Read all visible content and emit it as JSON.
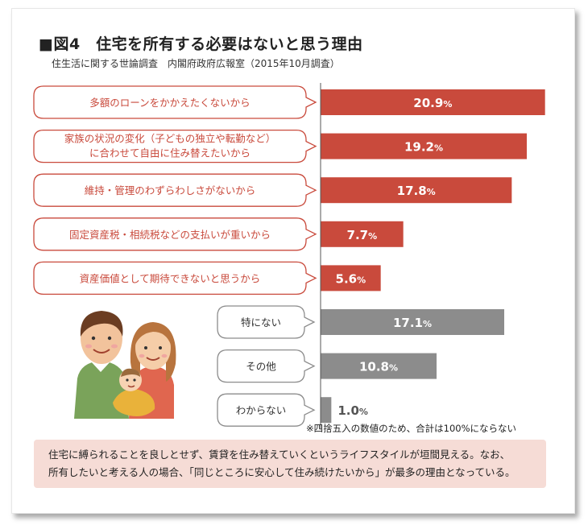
{
  "title": "■図4　住宅を所有する必要はないと思う理由",
  "subtitle": "住生活に関する世論調査　内閣府政府広報室（2015年10月調査）",
  "note": "※四捨五入の数値のため、合計は100%にならない",
  "comment": [
    "住宅に縛られることを良しとせず、賃貸を住み替えていくというライフスタイルが垣間見える。なお、",
    "所有したいと考える人の場合、「同じところに安心して住み続けたいから」が最多の理由となっている。"
  ],
  "colors": {
    "primary_bar": "#c94a3c",
    "secondary_bar": "#8c8c8c",
    "primary_label_border": "#c94a3c",
    "secondary_label_border": "#8c8c8c",
    "comment_bg": "#f6dcd6"
  },
  "chart_data": {
    "type": "bar",
    "orientation": "horizontal",
    "categories": [
      [
        "多額のローンをかかえたくないから"
      ],
      [
        "家族の状況の変化（子どもの独立や転勤など）",
        "に合わせて自由に住み替えたいから"
      ],
      [
        "維持・管理のわずらわしさがないから"
      ],
      [
        "固定資産税・相続税などの支払いが重いから"
      ],
      [
        "資産価値として期待できないと思うから"
      ],
      [
        "特にない"
      ],
      [
        "その他"
      ],
      [
        "わからない"
      ]
    ],
    "values": [
      20.9,
      19.2,
      17.8,
      7.7,
      5.6,
      17.1,
      10.8,
      1.0
    ],
    "value_labels": [
      "20.9%",
      "19.2%",
      "17.8%",
      "7.7%",
      "5.6%",
      "17.1%",
      "10.8%",
      "1.0%"
    ],
    "groups": [
      "primary",
      "primary",
      "primary",
      "primary",
      "primary",
      "secondary",
      "secondary",
      "secondary"
    ],
    "unit": "%",
    "xlim": [
      0,
      21
    ]
  }
}
